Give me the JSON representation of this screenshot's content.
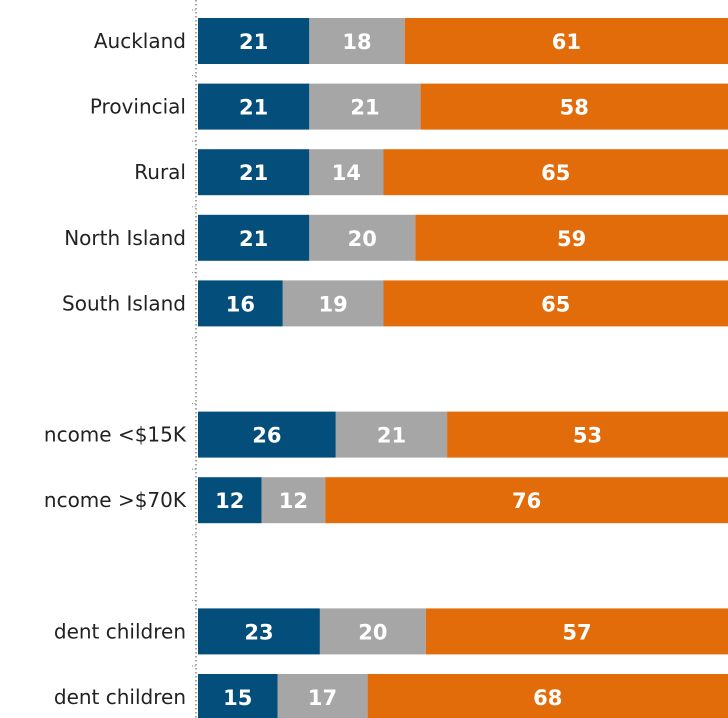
{
  "chart_data": {
    "type": "bar",
    "orientation": "horizontal",
    "stacked": true,
    "categories": [
      "Auckland",
      "Provincial",
      "Rural",
      "North Island",
      "South Island",
      "",
      "ncome <$15K",
      "ncome >$70K",
      "",
      "dent children",
      "dent children"
    ],
    "series": [
      {
        "values": [
          21,
          21,
          21,
          21,
          16,
          null,
          26,
          12,
          null,
          23,
          15
        ]
      },
      {
        "values": [
          18,
          21,
          14,
          20,
          19,
          null,
          21,
          12,
          null,
          20,
          17
        ]
      },
      {
        "values": [
          61,
          58,
          65,
          59,
          65,
          null,
          53,
          76,
          null,
          57,
          68
        ]
      }
    ],
    "data_labels": [
      [
        "21",
        "18",
        "61"
      ],
      [
        "21",
        "21",
        "58"
      ],
      [
        "21",
        "14",
        "65"
      ],
      [
        "21",
        "20",
        "59"
      ],
      [
        "16",
        "19",
        "65"
      ],
      null,
      [
        "26",
        "21",
        "53"
      ],
      [
        "12",
        "12",
        "76"
      ],
      null,
      [
        "23",
        "20",
        "57"
      ],
      [
        "15",
        "17",
        "68"
      ]
    ],
    "xlim": [
      0,
      100
    ],
    "colors": [
      "#044e7c",
      "#a6a6a6",
      "#e36c0a"
    ],
    "label_color": "#ffffff",
    "axis_style": "dotted",
    "grid": false,
    "legend": "none"
  }
}
